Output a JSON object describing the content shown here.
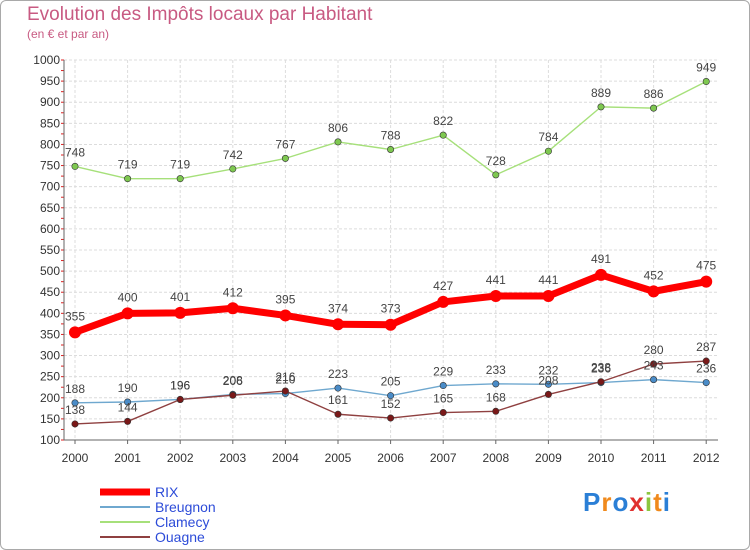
{
  "title": "Evolution des Impôts locaux par Habitant",
  "subtitle": "(en € et par an)",
  "logo_text": "Proxiti",
  "chart_data": {
    "type": "line",
    "title": "Evolution des Impôts locaux par Habitant",
    "subtitle": "(en € et par an)",
    "x": [
      "2000",
      "2001",
      "2002",
      "2003",
      "2004",
      "2005",
      "2006",
      "2007",
      "2008",
      "2009",
      "2010",
      "2011",
      "2012"
    ],
    "ylim": [
      100,
      1000
    ],
    "yticks": [
      100,
      150,
      200,
      250,
      300,
      350,
      400,
      450,
      500,
      550,
      600,
      650,
      700,
      750,
      800,
      850,
      900,
      950,
      1000
    ],
    "grid": true,
    "legend_position": "bottom-left",
    "series": [
      {
        "name": "RIX",
        "color": "#ff0000",
        "legend_color": "#2c4bd8",
        "marker_color": "#ff0000",
        "values": [
          355,
          400,
          401,
          412,
          395,
          374,
          373,
          427,
          441,
          441,
          491,
          452,
          475
        ]
      },
      {
        "name": "Breugnon",
        "color": "#6fa8cf",
        "legend_color": "#2c4bd8",
        "marker_color": "#4a8cc8",
        "values": [
          188,
          190,
          196,
          208,
          210,
          223,
          205,
          229,
          233,
          232,
          236,
          243,
          236
        ]
      },
      {
        "name": "Clamecy",
        "color": "#a6e07a",
        "legend_color": "#2c4bd8",
        "marker_color": "#7ec850",
        "values": [
          748,
          719,
          719,
          742,
          767,
          806,
          788,
          822,
          728,
          784,
          889,
          886,
          949
        ]
      },
      {
        "name": "Ouagne",
        "color": "#8f4040",
        "legend_color": "#2c4bd8",
        "marker_color": "#7a1818",
        "values": [
          138,
          144,
          196,
          206,
          216,
          161,
          152,
          165,
          168,
          208,
          238,
          280,
          287
        ]
      }
    ]
  }
}
